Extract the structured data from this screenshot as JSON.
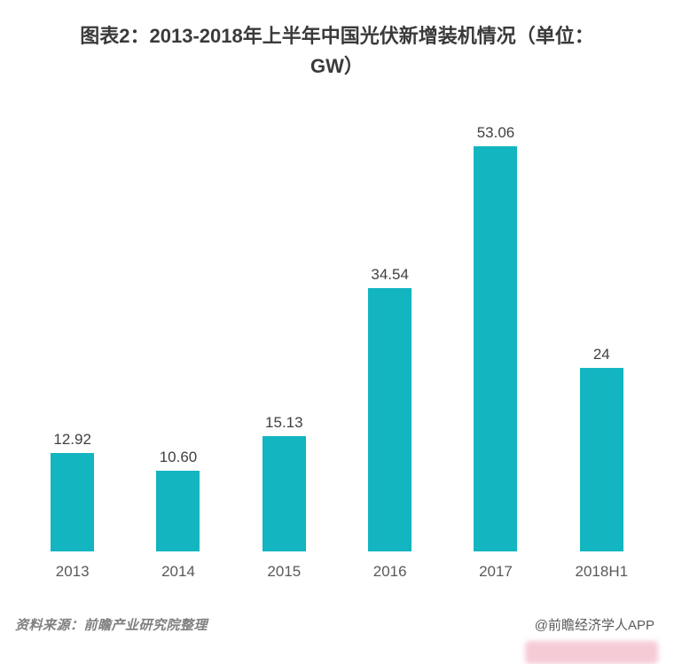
{
  "header": {
    "title_line1": "图表2：2013-2018年上半年中国光伏新增装机情况（单位：",
    "title_line2": "GW）"
  },
  "chart_data": {
    "type": "bar",
    "title": "图表2：2013-2018年上半年中国光伏新增装机情况（单位：GW）",
    "categories": [
      "2013",
      "2014",
      "2015",
      "2016",
      "2017",
      "2018H1"
    ],
    "values": [
      12.92,
      10.6,
      15.13,
      34.54,
      53.06,
      24
    ],
    "value_labels": [
      "12.92",
      "10.60",
      "15.13",
      "34.54",
      "53.06",
      "24"
    ],
    "xlabel": "",
    "ylabel": "",
    "unit": "GW",
    "ylim": [
      0,
      55
    ],
    "grid": false,
    "legend": "none",
    "bar_color": "#12b5c0"
  },
  "footer": {
    "source": "资料来源：前瞻产业研究院整理",
    "credit": "@前瞻经济学人APP"
  },
  "colors": {
    "bar": "#12b5c0",
    "title_text": "#3a3a3a",
    "value_text": "#404040",
    "tick_text": "#595959",
    "source_text": "#808080",
    "watermark": "#e98da3",
    "background": "#ffffff"
  }
}
